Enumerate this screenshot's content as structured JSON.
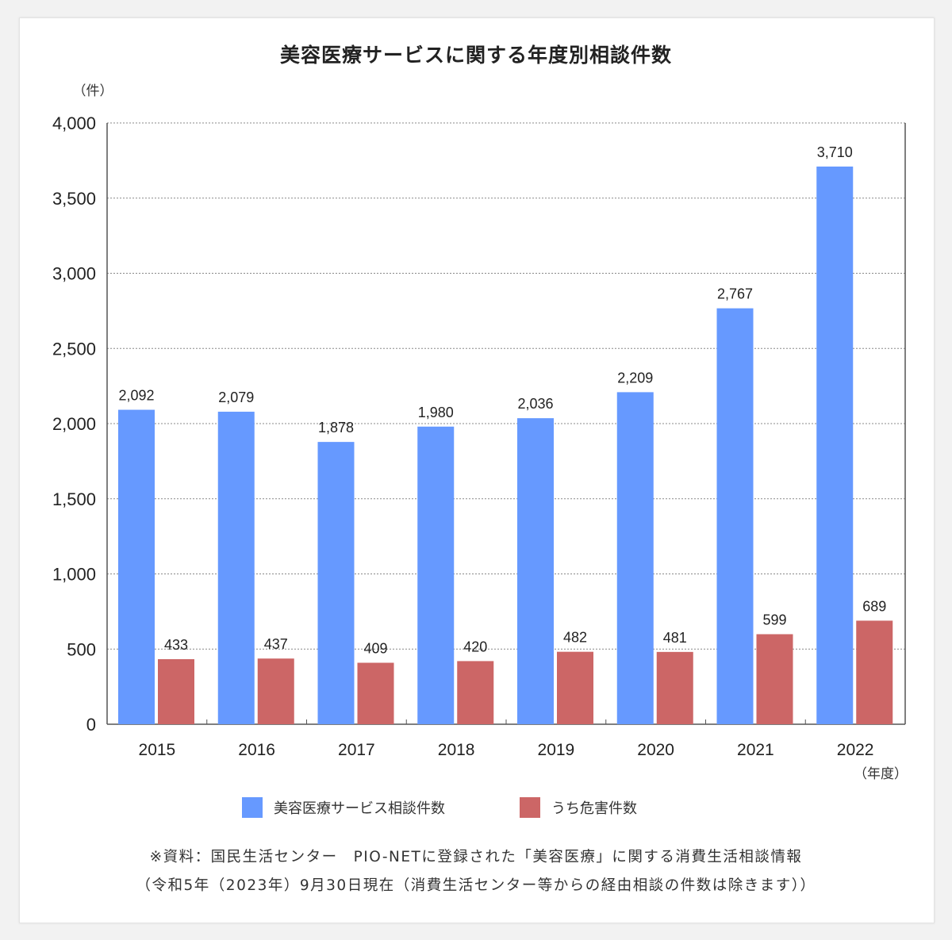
{
  "chart_data": {
    "type": "bar",
    "title": "美容医療サービスに関する年度別相談件数",
    "ylabel": "（件）",
    "xlabel": "（年度）",
    "categories": [
      "2015",
      "2016",
      "2017",
      "2018",
      "2019",
      "2020",
      "2021",
      "2022"
    ],
    "series": [
      {
        "name": "美容医療サービス相談件数",
        "color": "#6699ff",
        "values": [
          2092,
          2079,
          1878,
          1980,
          2036,
          2209,
          2767,
          3710
        ],
        "labels": [
          "2,092",
          "2,079",
          "1,878",
          "1,980",
          "2,036",
          "2,209",
          "2,767",
          "3,710"
        ]
      },
      {
        "name": "うち危害件数",
        "color": "#cc6666",
        "values": [
          433,
          437,
          409,
          420,
          482,
          481,
          599,
          689
        ],
        "labels": [
          "433",
          "437",
          "409",
          "420",
          "482",
          "481",
          "599",
          "689"
        ]
      }
    ],
    "ylim": [
      0,
      4000
    ],
    "yticks": [
      0,
      500,
      1000,
      1500,
      2000,
      2500,
      3000,
      3500,
      4000
    ],
    "ytick_labels": [
      "0",
      "500",
      "1,000",
      "1,500",
      "2,000",
      "2,500",
      "3,000",
      "3,500",
      "4,000"
    ],
    "grid": true,
    "legend_position": "bottom"
  },
  "notes": {
    "line1": "※資料：国民生活センター　PIO-NETに登録された「美容医療」に関する消費生活相談情報",
    "line2": "（令和5年（2023年）9月30日現在（消費生活センター等からの経由相談の件数は除きます））"
  }
}
